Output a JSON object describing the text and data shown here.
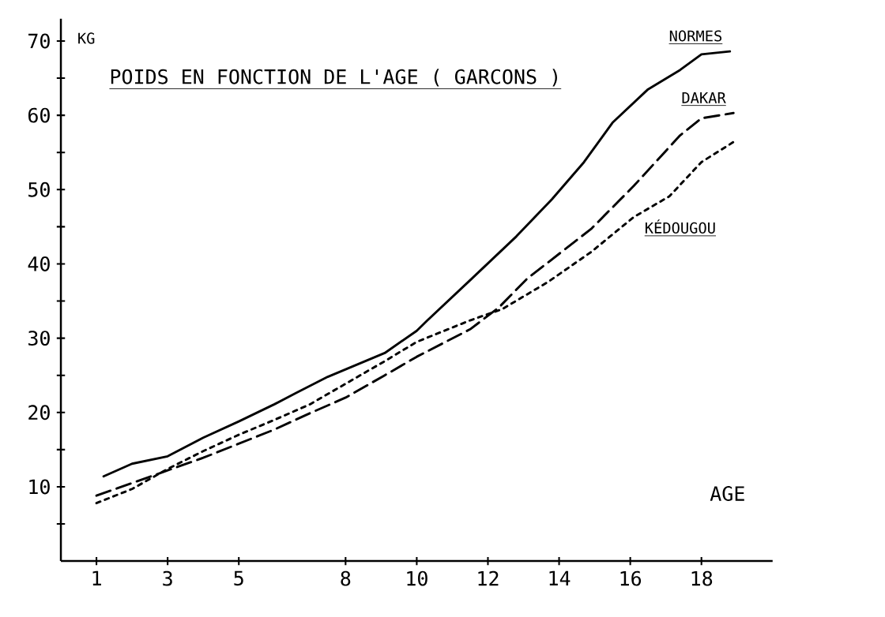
{
  "chart_data": {
    "type": "line",
    "title": "POIDS EN FONCTION DE L'AGE ( GARCONS )",
    "xlabel": "AGE",
    "ylabel": "KG",
    "xlim": [
      0,
      20
    ],
    "ylim": [
      0,
      73
    ],
    "xticks": [
      1,
      3,
      5,
      8,
      10,
      12,
      14,
      16,
      18
    ],
    "yticks": [
      {
        "value": 5,
        "label": null
      },
      10,
      {
        "value": 15,
        "label": null
      },
      20,
      {
        "value": 25,
        "label": null
      },
      30,
      {
        "value": 35,
        "label": null
      },
      40,
      {
        "value": 45,
        "label": null
      },
      50,
      {
        "value": 55,
        "label": null
      },
      60,
      {
        "value": 65,
        "label": null
      },
      70
    ],
    "grid": false,
    "series": [
      {
        "name": "NORMES",
        "color": "#000000",
        "line_style": "solid",
        "x": [
          1.2,
          2,
          3,
          4,
          5,
          6,
          6.6,
          7.5,
          9.1,
          10,
          10.3,
          11.5,
          12.8,
          13.8,
          14.7,
          15.5,
          16.5,
          17.4,
          18,
          18.8
        ],
        "values": [
          11.4,
          13.1,
          14.1,
          16.6,
          18.8,
          21.1,
          22.6,
          24.8,
          28,
          31,
          32.4,
          37.8,
          43.7,
          48.7,
          53.7,
          59,
          63.5,
          66.1,
          68.2,
          68.6
        ]
      },
      {
        "name": "DAKAR",
        "color": "#000000",
        "line_style": "dashed",
        "x": [
          1,
          3,
          4,
          5,
          6,
          7,
          8,
          9.1,
          10,
          11.5,
          12.3,
          13.1,
          14.9,
          16.1,
          17.4,
          18,
          18.9
        ],
        "values": [
          8.8,
          12.2,
          13.9,
          15.8,
          17.7,
          19.9,
          22,
          25,
          27.5,
          31.2,
          34.1,
          38,
          44.7,
          50.5,
          57.3,
          59.6,
          60.3
        ]
      },
      {
        "name": "KÉDOUGOU",
        "color": "#000000",
        "line_style": "dotted",
        "x": [
          1,
          2,
          3,
          4,
          5,
          6,
          7,
          9.1,
          10,
          11.5,
          12.4,
          13.7,
          14.9,
          16.1,
          17.1,
          18,
          18.9
        ],
        "values": [
          7.8,
          9.7,
          12.4,
          14.8,
          17,
          19,
          21.1,
          26.9,
          29.5,
          32.4,
          33.9,
          37.6,
          41.6,
          46.3,
          49.1,
          53.7,
          56.4
        ]
      }
    ]
  }
}
